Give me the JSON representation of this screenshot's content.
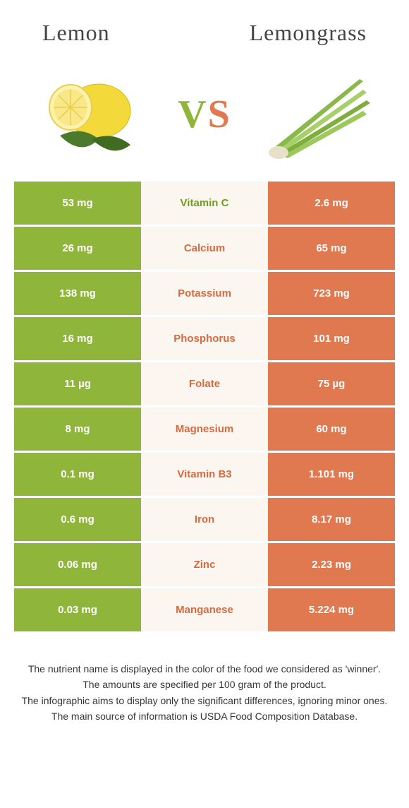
{
  "header": {
    "left_title": "Lemon",
    "right_title": "Lemongrass"
  },
  "vs": {
    "v": "V",
    "s": "S"
  },
  "colors": {
    "green": "#8fb53a",
    "orange": "#e07850",
    "mid_bg": "#fbf6ef",
    "text_green": "#6f9c1f",
    "text_orange": "#d96a3f"
  },
  "rows": [
    {
      "left": "53 mg",
      "label": "Vitamin C",
      "right": "2.6 mg",
      "winner": "green"
    },
    {
      "left": "26 mg",
      "label": "Calcium",
      "right": "65 mg",
      "winner": "orange"
    },
    {
      "left": "138 mg",
      "label": "Potassium",
      "right": "723 mg",
      "winner": "orange"
    },
    {
      "left": "16 mg",
      "label": "Phosphorus",
      "right": "101 mg",
      "winner": "orange"
    },
    {
      "left": "11 µg",
      "label": "Folate",
      "right": "75 µg",
      "winner": "orange"
    },
    {
      "left": "8 mg",
      "label": "Magnesium",
      "right": "60 mg",
      "winner": "orange"
    },
    {
      "left": "0.1 mg",
      "label": "Vitamin B3",
      "right": "1.101 mg",
      "winner": "orange"
    },
    {
      "left": "0.6 mg",
      "label": "Iron",
      "right": "8.17 mg",
      "winner": "orange"
    },
    {
      "left": "0.06 mg",
      "label": "Zinc",
      "right": "2.23 mg",
      "winner": "orange"
    },
    {
      "left": "0.03 mg",
      "label": "Manganese",
      "right": "5.224 mg",
      "winner": "orange"
    }
  ],
  "footnote": {
    "l1": "The nutrient name is displayed in the color of the food we considered as 'winner'.",
    "l2": "The amounts are specified per 100 gram of the product.",
    "l3": "The infographic aims to display only the significant differences, ignoring minor ones.",
    "l4": "The main source of information is USDA Food Composition Database."
  }
}
